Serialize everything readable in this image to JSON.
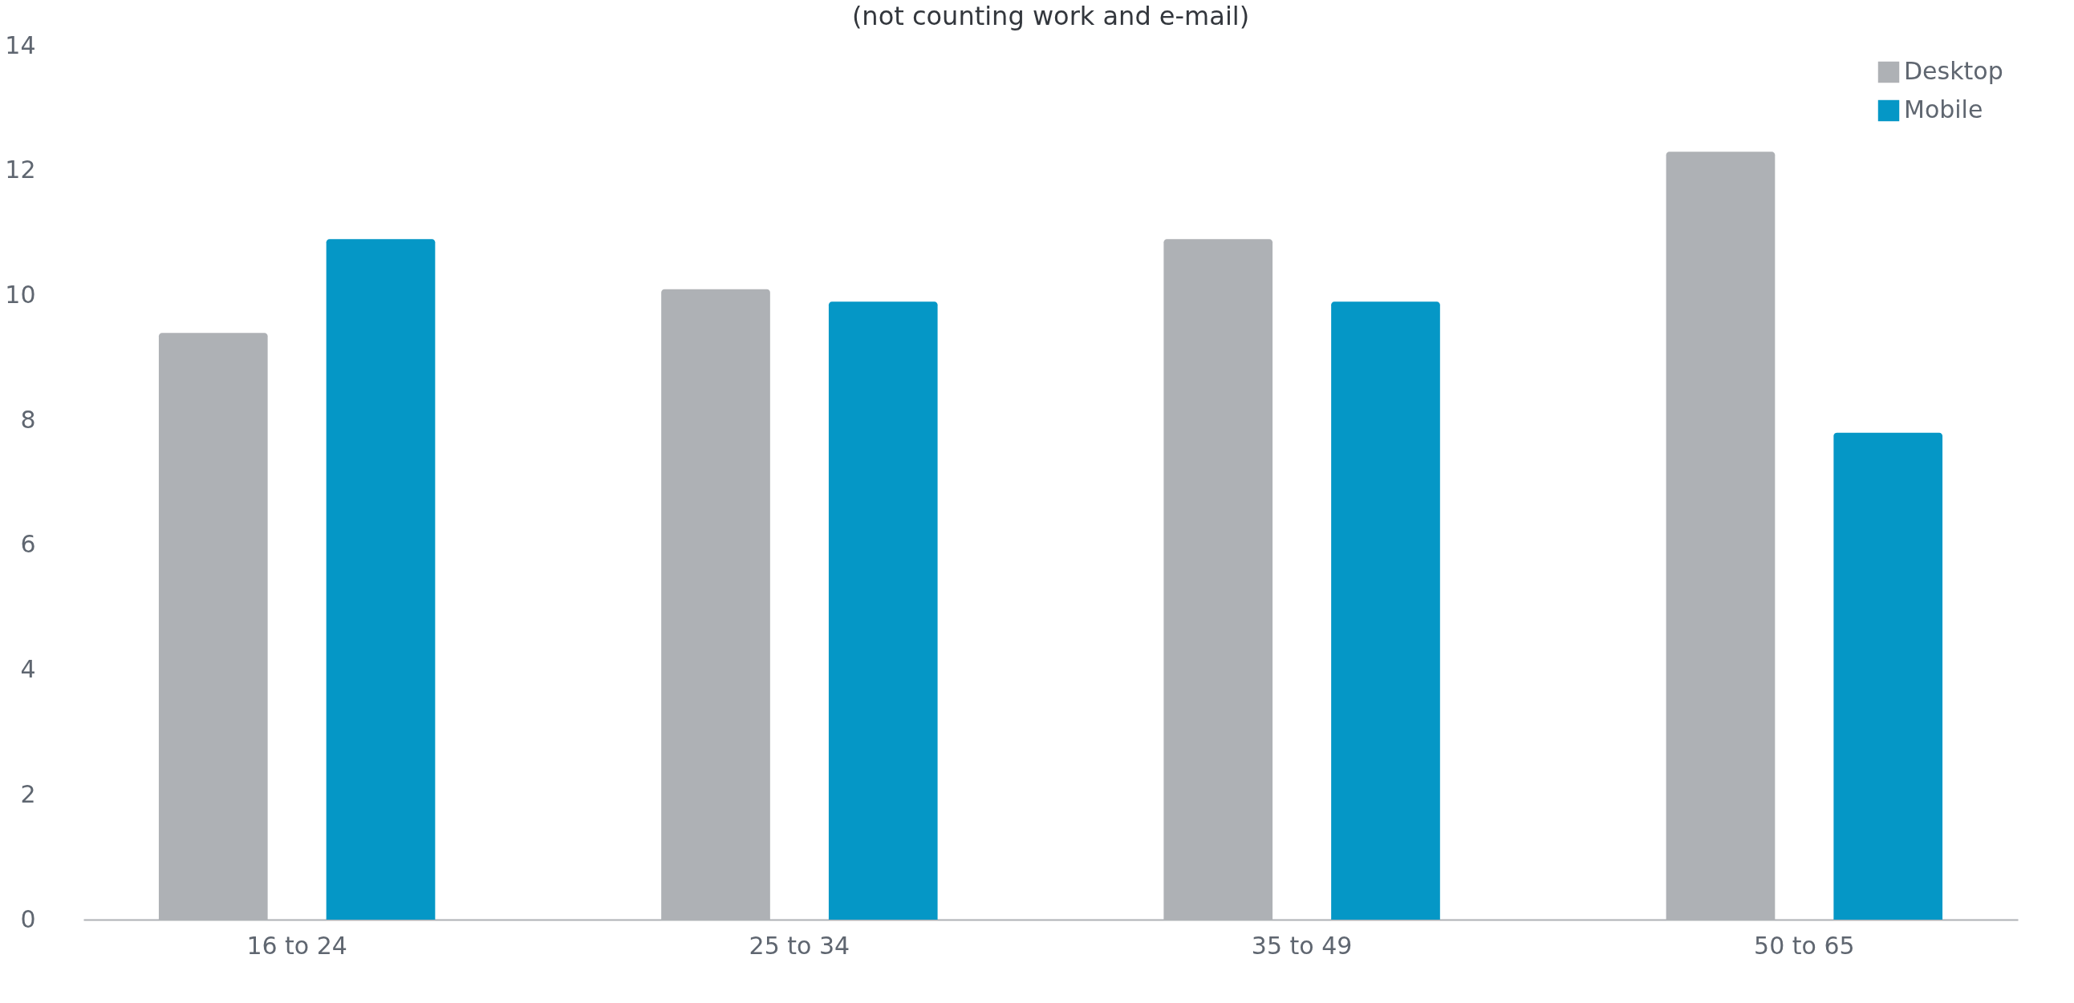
{
  "chart_data": {
    "type": "bar",
    "title": "(not counting work and e-mail)",
    "categories": [
      "16 to 24",
      "25 to 34",
      "35 to 49",
      "50 to 65"
    ],
    "series": [
      {
        "name": "Desktop",
        "color": "#aeb1b5",
        "values": [
          9.4,
          10.1,
          10.9,
          12.3
        ]
      },
      {
        "name": "Mobile",
        "color": "#0597c6",
        "values": [
          10.9,
          9.9,
          9.9,
          7.8
        ]
      }
    ],
    "ylim": [
      0,
      14
    ],
    "yticks": [
      0,
      2,
      4,
      6,
      8,
      10,
      12,
      14
    ],
    "grid": false,
    "legend": "top right"
  }
}
